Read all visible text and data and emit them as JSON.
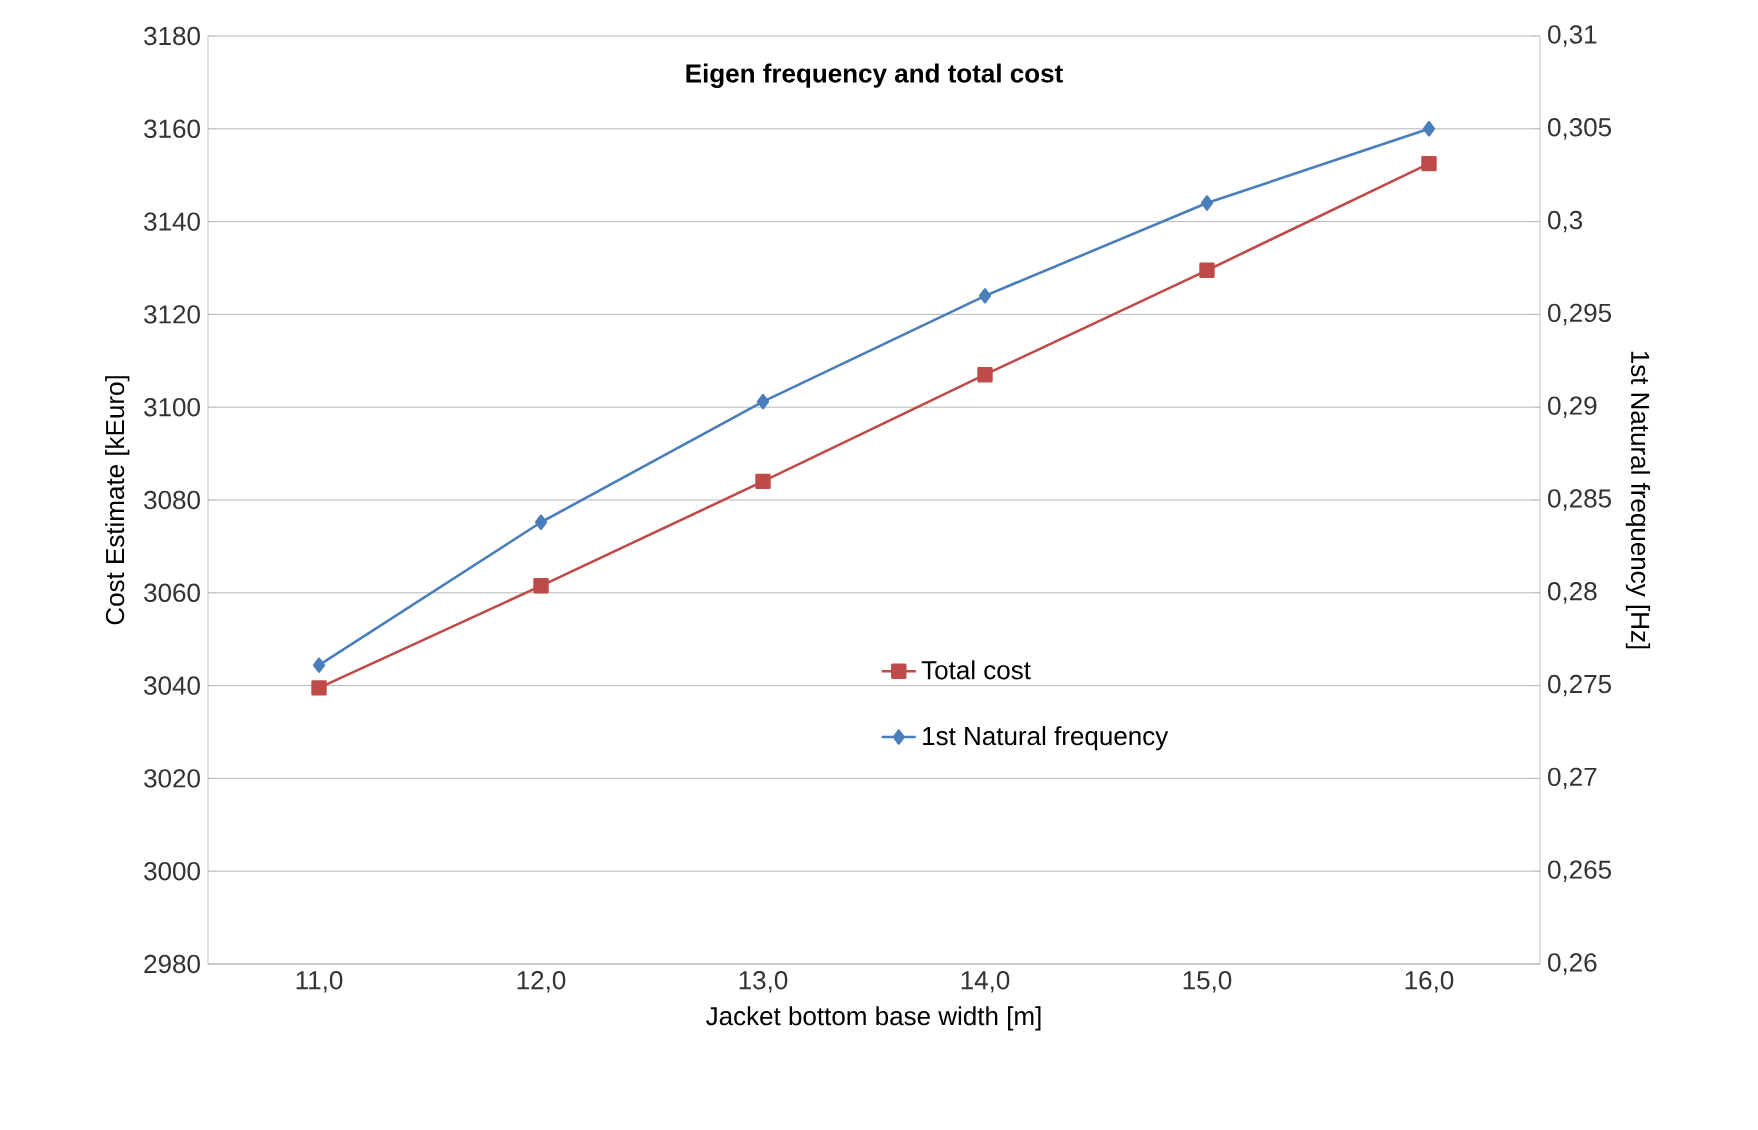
{
  "chart_data": {
    "type": "line",
    "title": "Eigen frequency and total cost",
    "xlabel": "Jacket bottom base width [m]",
    "ylabel": "Cost Estimate [kEuro]",
    "y2label": "1st Natural frequency [Hz]",
    "categories": [
      "11,0",
      "12,0",
      "13,0",
      "14,0",
      "15,0",
      "16,0"
    ],
    "series": [
      {
        "name": "Total cost",
        "color": "#be4b48",
        "marker": "square",
        "values": [
          3039.5,
          3061.5,
          3084,
          3107,
          3129.5,
          3152.5
        ]
      },
      {
        "name": "1st Natural frequency",
        "color": "#4a7ebb",
        "marker": "diamond",
        "axis": "y2",
        "values": [
          0.2761,
          0.2838,
          0.2903,
          0.296,
          0.301,
          0.305
        ]
      }
    ],
    "ylim": [
      2980,
      3180
    ],
    "yticks": [
      2980,
      3000,
      3020,
      3040,
      3060,
      3080,
      3100,
      3120,
      3140,
      3160,
      3180
    ],
    "y2lim": [
      0.26,
      0.31
    ],
    "y2ticks": [
      {
        "value": 0.26,
        "label": "0,26"
      },
      {
        "value": 0.265,
        "label": "0,265"
      },
      {
        "value": 0.27,
        "label": "0,27"
      },
      {
        "value": 0.275,
        "label": "0,275"
      },
      {
        "value": 0.28,
        "label": "0,28"
      },
      {
        "value": 0.285,
        "label": "0,285"
      },
      {
        "value": 0.29,
        "label": "0,29"
      },
      {
        "value": 0.295,
        "label": "0,295"
      },
      {
        "value": 0.3,
        "label": "0,3"
      },
      {
        "value": 0.305,
        "label": "0,305"
      },
      {
        "value": 0.31,
        "label": "0,31"
      }
    ],
    "grid": "y",
    "legend": "center"
  }
}
